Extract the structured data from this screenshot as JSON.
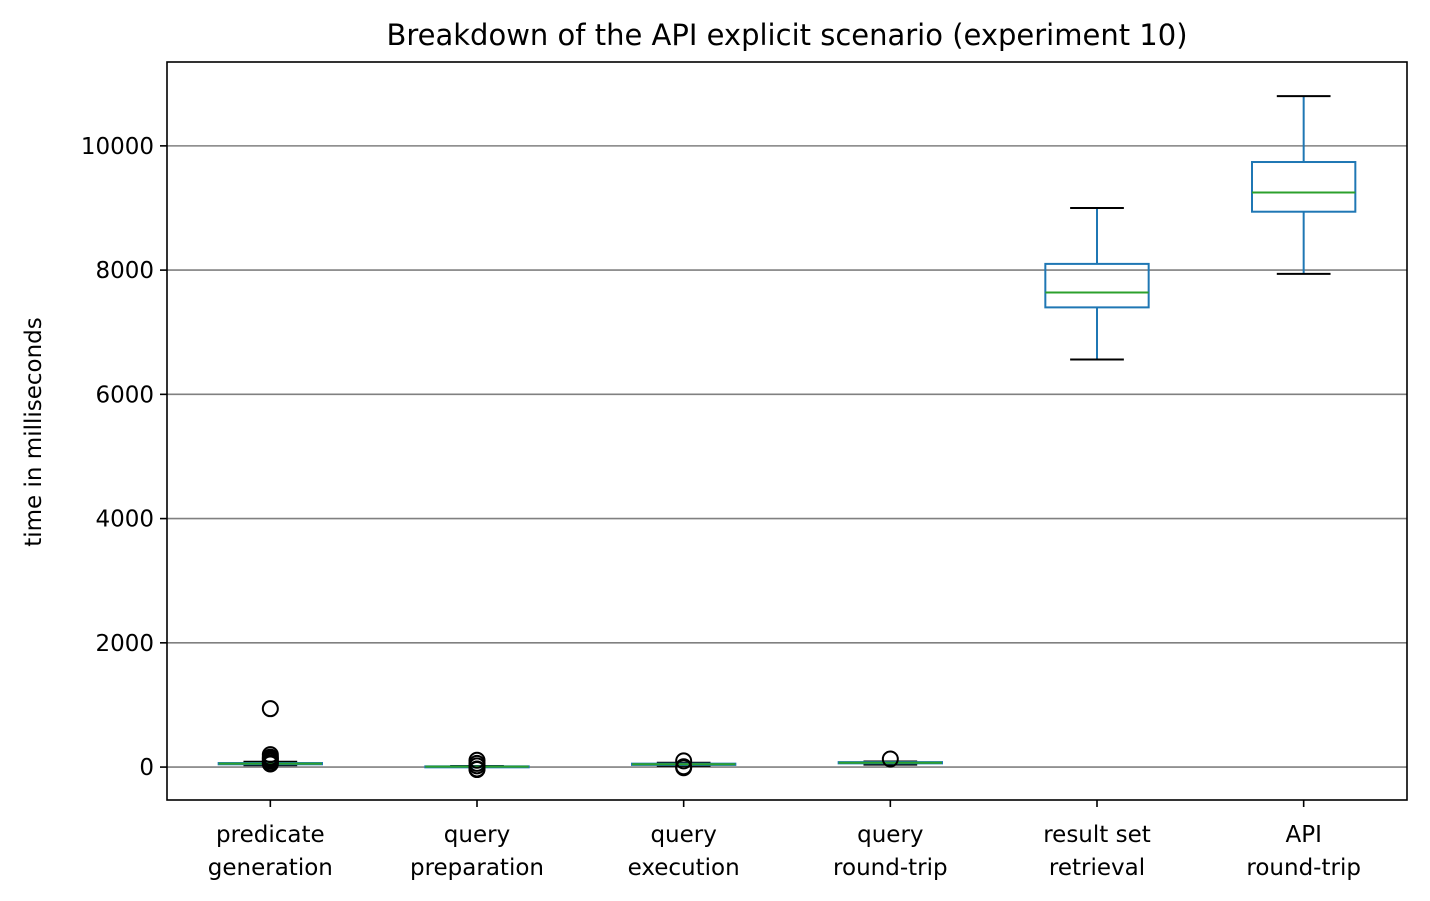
{
  "chart_data": {
    "type": "box",
    "title": "Breakdown of the API explicit scenario (experiment 10)",
    "xlabel": "",
    "ylabel": "time in milliseconds",
    "ylim": [
      -530,
      11350
    ],
    "yticks": [
      0,
      2000,
      4000,
      6000,
      8000,
      10000
    ],
    "grid": "horizontal",
    "colors": {
      "box": "#1f77b4",
      "median": "#2ca02c",
      "whisker_cap": "#000000",
      "grid": "#808080"
    },
    "categories": [
      [
        "predicate",
        "generation"
      ],
      [
        "query",
        "preparation"
      ],
      [
        "query",
        "execution"
      ],
      [
        "query",
        "round-trip"
      ],
      [
        "result set",
        "retrieval"
      ],
      [
        "API",
        "round-trip"
      ]
    ],
    "boxes": [
      {
        "whislo": 30,
        "q1": 45,
        "med": 55,
        "q3": 65,
        "whishi": 85,
        "fliers": [
          940,
          200,
          160,
          140,
          120,
          100,
          70,
          50
        ]
      },
      {
        "whislo": 2,
        "q1": 5,
        "med": 8,
        "q3": 12,
        "whishi": 18,
        "fliers": [
          110,
          60,
          20,
          -30,
          -40
        ]
      },
      {
        "whislo": 20,
        "q1": 35,
        "med": 45,
        "q3": 55,
        "whishi": 70,
        "fliers": [
          100,
          5,
          -10
        ]
      },
      {
        "whislo": 40,
        "q1": 60,
        "med": 70,
        "q3": 80,
        "whishi": 90,
        "fliers": [
          130
        ]
      },
      {
        "whislo": 6560,
        "q1": 7400,
        "med": 7640,
        "q3": 8100,
        "whishi": 9000,
        "fliers": []
      },
      {
        "whislo": 7940,
        "q1": 8940,
        "med": 9250,
        "q3": 9740,
        "whishi": 10800,
        "fliers": []
      }
    ]
  }
}
